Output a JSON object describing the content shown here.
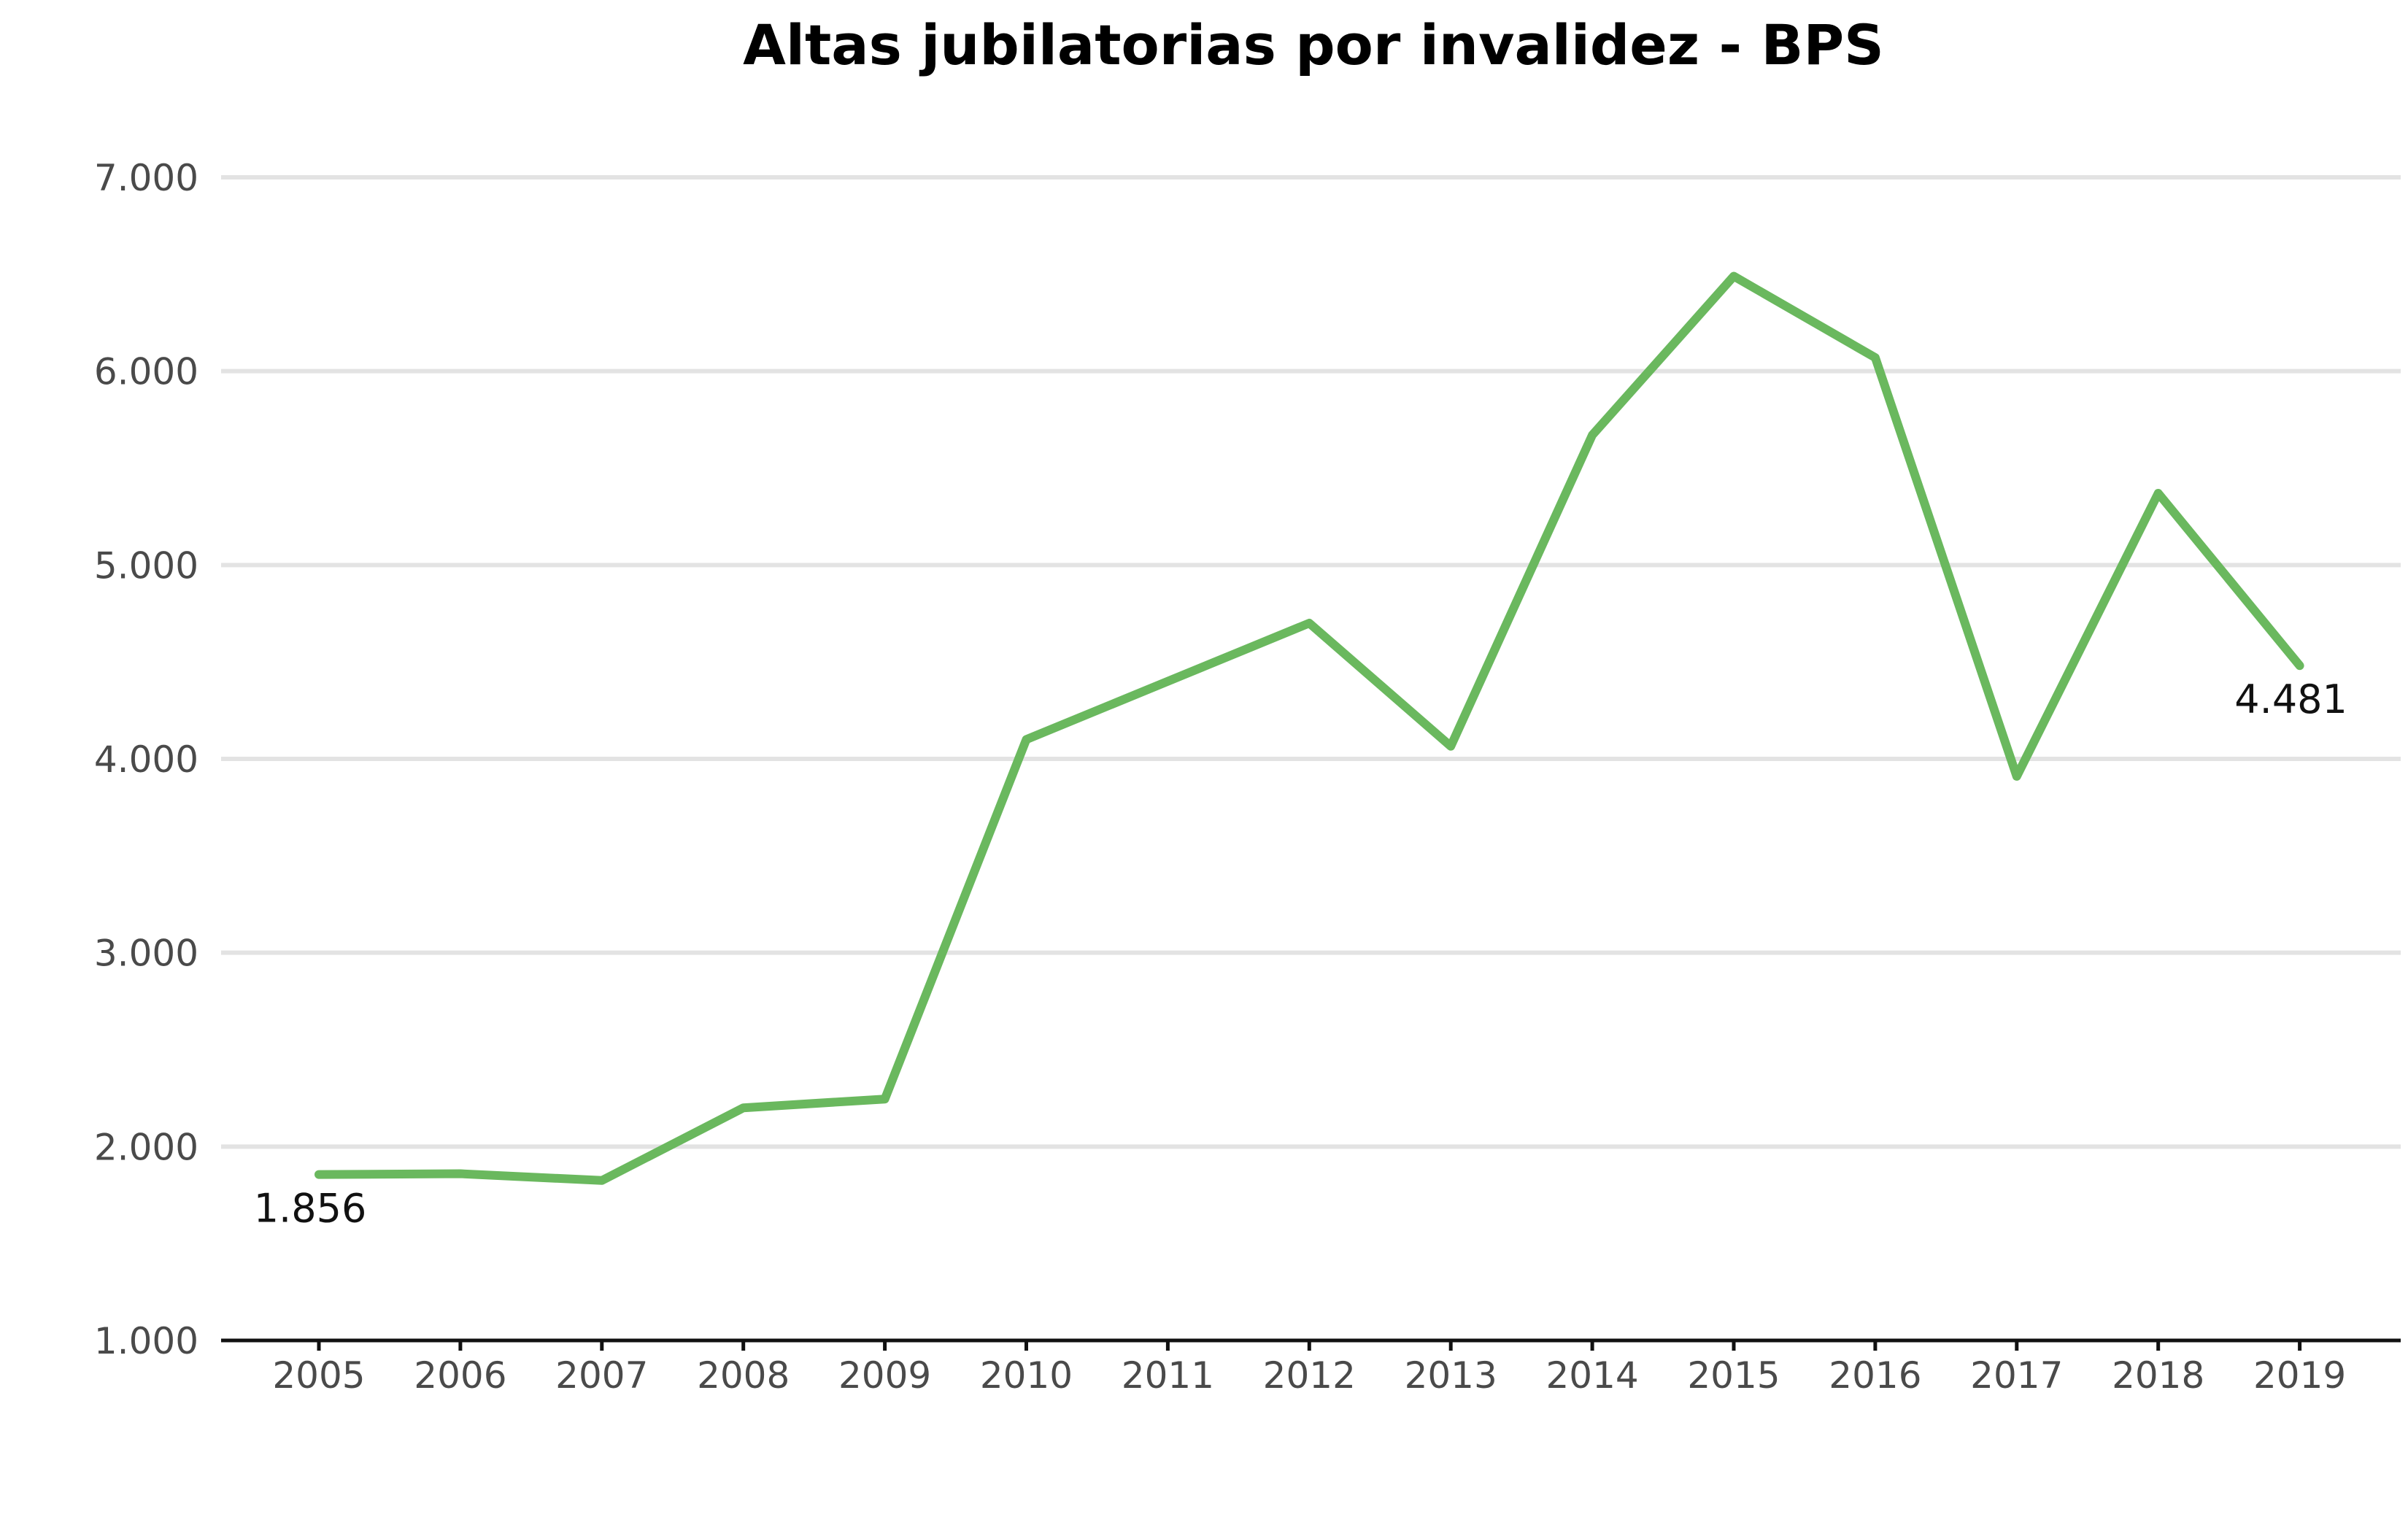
{
  "chart_data": {
    "type": "line",
    "title": "Altas jubilatorias por invalidez - BPS",
    "xlabel": "",
    "ylabel": "",
    "categories": [
      "2005",
      "2006",
      "2007",
      "2008",
      "2009",
      "2010",
      "2011",
      "2012",
      "2013",
      "2014",
      "2015",
      "2016",
      "2017",
      "2018",
      "2019"
    ],
    "series": [
      {
        "values": [
          1856,
          1860,
          1825,
          2200,
          2245,
          4100,
          4400,
          4700,
          4065,
          5670,
          6490,
          6070,
          3910,
          5370,
          4481
        ],
        "color": "#6ab85e"
      }
    ],
    "ylim": [
      1000,
      7000
    ],
    "yticks": [
      1000,
      2000,
      3000,
      4000,
      5000,
      6000,
      7000
    ],
    "ytick_labels": [
      "1.000",
      "2.000",
      "3.000",
      "4.000",
      "5.000",
      "6.000",
      "7.000"
    ],
    "data_labels": [
      {
        "index": 0,
        "text": "1.856",
        "position": "below"
      },
      {
        "index": 14,
        "text": "4.481",
        "position": "below"
      }
    ],
    "grid": true,
    "legend": "none"
  }
}
